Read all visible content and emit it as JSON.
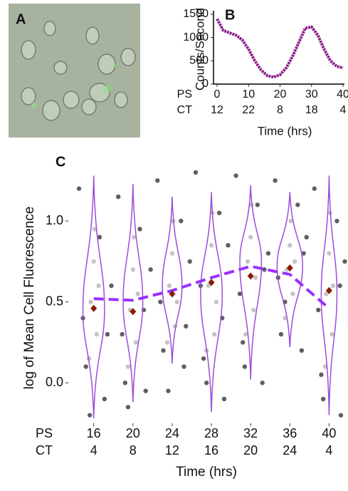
{
  "panel_a": {
    "label": "A"
  },
  "chart_data": [
    {
      "type": "line",
      "panel_label": "B",
      "y_label": "Counts/Second",
      "x_label": "Time (hrs)",
      "row_labels": [
        "PS",
        "CT"
      ],
      "x": [
        0,
        2,
        4,
        6,
        8,
        10,
        12,
        14,
        16,
        18,
        20,
        22,
        24,
        26,
        28,
        30,
        32,
        34,
        36,
        38,
        40
      ],
      "series": [
        {
          "color": "#8b1a8b",
          "values": [
            1400,
            1150,
            1100,
            1050,
            950,
            750,
            500,
            300,
            180,
            150,
            200,
            350,
            600,
            900,
            1200,
            1230,
            1050,
            750,
            500,
            380,
            350
          ]
        }
      ],
      "xlim": [
        0,
        40
      ],
      "xticks": [
        0,
        10,
        20,
        30,
        40
      ],
      "ct_ticks": [
        12,
        22,
        8,
        18,
        4
      ],
      "ylim": [
        0,
        1500
      ],
      "yticks": [
        0,
        500,
        1000,
        1500
      ]
    },
    {
      "type": "violin",
      "panel_label": "C",
      "y_label": "log of Mean Cell Fluorescence",
      "x_label": "Time (hrs)",
      "row_labels": [
        "PS",
        "CT"
      ],
      "xlim": [
        13.7,
        42
      ],
      "xticks": [
        16,
        20,
        24,
        28,
        32,
        36,
        40
      ],
      "ct_ticks": [
        4,
        8,
        12,
        16,
        20,
        24,
        4
      ],
      "ylim": [
        -0.25,
        1.3
      ],
      "yticks": [
        {
          "value": 0,
          "label": "0.0"
        },
        {
          "value": 0.5,
          "label": "0.5"
        },
        {
          "value": 1,
          "label": "1.0"
        }
      ],
      "points": [
        {
          "color": "#2a2a2a",
          "x": [
            14.5,
            15.2,
            17.1,
            17.8,
            14.9,
            16.6,
            15.6,
            17.4,
            18.5,
            19.2,
            21.3,
            21.8,
            18.9,
            20.7,
            19.5,
            21.1,
            22.5,
            23.1,
            25.2,
            25.8,
            22.8,
            24.9,
            23.6,
            25.4,
            26.4,
            27.2,
            29.3,
            29.7,
            26.9,
            28.8,
            27.5,
            29.1,
            30.5,
            31.2,
            33.2,
            33.8,
            30.9,
            32.7,
            31.4,
            33.4,
            34.5,
            35.1,
            37.2,
            37.7,
            34.8,
            36.8,
            35.5,
            37.4,
            38.5,
            39.2,
            41.2,
            41.6,
            38.9,
            40.8,
            39.4,
            41.1
          ],
          "y": [
            1.2,
            0.1,
            -0.1,
            0.6,
            0.4,
            0.9,
            -0.2,
            0.3,
            1.15,
            0,
            -0.05,
            0.7,
            0.3,
            0.95,
            -0.15,
            0.45,
            1.25,
            0.2,
            0.1,
            0.75,
            0.5,
            1,
            -0.05,
            0.35,
            1.3,
            0.15,
            -0.1,
            0.85,
            0.6,
            1.05,
            0,
            0.4,
            1.28,
            0.25,
            0,
            0.8,
            0.55,
            1.1,
            0.1,
            0.7,
            1.25,
            0.3,
            0.2,
            0.9,
            0.65,
            1.1,
            0.5,
            0.8,
            1.2,
            0.05,
            -0.2,
            0.75,
            0.45,
            1,
            -0.1,
            0.6
          ]
        },
        {
          "color": "#b0b0b0",
          "x": [
            15.7,
            16.3,
            16,
            15.5,
            16.5,
            16.1,
            19.7,
            20.3,
            20,
            19.5,
            20.5,
            20.1,
            23.7,
            24.3,
            24,
            23.5,
            24.5,
            24.1,
            27.7,
            28.3,
            28,
            27.5,
            28.5,
            28.1,
            31.7,
            32.3,
            32,
            31.5,
            32.5,
            32.1,
            35.7,
            36.3,
            36,
            35.5,
            36.5,
            36.1,
            39.7,
            40.3,
            40,
            39.6,
            40.4,
            40.1
          ],
          "y": [
            0.5,
            0.3,
            0.75,
            0.15,
            0.6,
            0.95,
            0.45,
            0.25,
            0.7,
            0.1,
            0.55,
            0.9,
            0.6,
            0.35,
            0.8,
            0.25,
            0.5,
            1,
            0.6,
            0.3,
            0.85,
            0.2,
            0.5,
            1.05,
            0.75,
            0.45,
            0.9,
            0.3,
            0.65,
            1.1,
            0.7,
            0.55,
            0.85,
            0.4,
            0.75,
            1,
            0.55,
            0.3,
            0.8,
            0.1,
            0.6,
            1.05
          ]
        }
      ],
      "violins": {
        "color": "#9b4ddb",
        "x": [
          16,
          20,
          24,
          28,
          32,
          36,
          40
        ],
        "min": [
          -0.22,
          -0.12,
          0.12,
          -0.18,
          0.02,
          0.22,
          -0.2
        ],
        "max": [
          1.28,
          1.23,
          1.15,
          1.18,
          1.22,
          1.18,
          1.28
        ],
        "mode": [
          0.45,
          0.5,
          0.6,
          0.55,
          0.75,
          0.72,
          0.55
        ],
        "half_width": [
          1.1,
          1,
          1,
          1.1,
          1.1,
          1.3,
          0.8
        ]
      },
      "means": {
        "color": "#8b1a00",
        "x": [
          16,
          20,
          24,
          28,
          32,
          36,
          40
        ],
        "values": [
          0.46,
          0.44,
          0.55,
          0.62,
          0.66,
          0.71,
          0.57
        ]
      },
      "trend": {
        "color": "#9b30ff",
        "x": [
          16,
          20,
          24,
          28,
          32,
          36,
          40
        ],
        "values": [
          0.52,
          0.51,
          0.57,
          0.65,
          0.72,
          0.67,
          0.46
        ]
      }
    }
  ]
}
